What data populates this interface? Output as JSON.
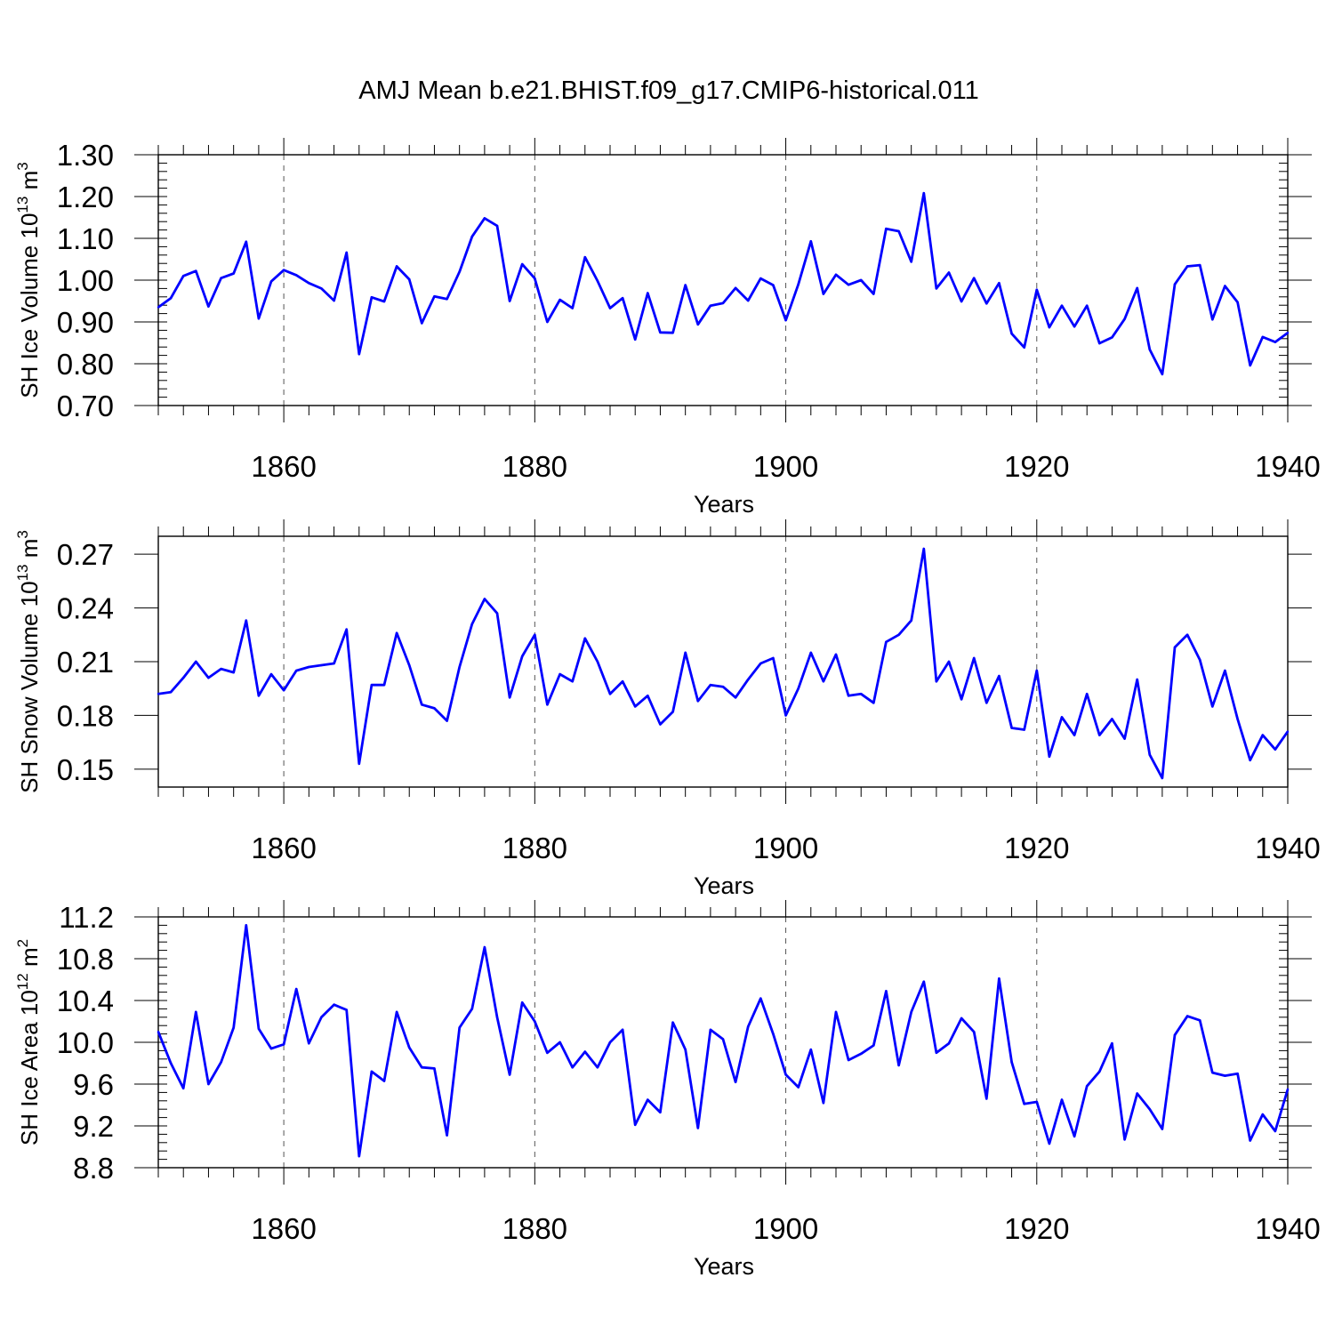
{
  "figure": {
    "title": "AMJ Mean b.e21.BHIST.f09_g17.CMIP6-historical.011"
  },
  "chart_data": [
    {
      "type": "line",
      "ylabel_main": "SH Ice Volume 10",
      "ylabel_exp": "13",
      "ylabel_unit": " m",
      "ylabel_unit_exp": "3",
      "xlabel": "Years",
      "xlim": [
        1850,
        1940
      ],
      "ylim": [
        0.7,
        1.3
      ],
      "yticks": [
        0.7,
        0.8,
        0.9,
        1.0,
        1.1,
        1.2,
        1.3
      ],
      "ytick_labels": [
        "0.70",
        "0.80",
        "0.90",
        "1.00",
        "1.10",
        "1.20",
        "1.30"
      ],
      "yminor_step": 0.02,
      "xticks": [
        1860,
        1880,
        1900,
        1920,
        1940
      ],
      "xtick_labels": [
        "1860",
        "1880",
        "1900",
        "1920",
        "1940"
      ],
      "grid_x": true,
      "line_color": "#0000ff",
      "x_start": 1850,
      "values": [
        0.935,
        0.957,
        1.01,
        1.022,
        0.937,
        1.005,
        1.016,
        1.092,
        0.908,
        0.997,
        1.024,
        1.012,
        0.993,
        0.98,
        0.951,
        1.066,
        0.823,
        0.959,
        0.949,
        1.033,
        1.002,
        0.897,
        0.961,
        0.955,
        1.02,
        1.104,
        1.148,
        1.13,
        0.95,
        1.038,
        1.004,
        0.9,
        0.953,
        0.933,
        1.055,
        0.998,
        0.933,
        0.957,
        0.858,
        0.969,
        0.875,
        0.874,
        0.988,
        0.894,
        0.939,
        0.945,
        0.981,
        0.951,
        1.004,
        0.988,
        0.904,
        0.99,
        1.093,
        0.967,
        1.013,
        0.989,
        1.0,
        0.967,
        1.123,
        1.117,
        1.044,
        1.208,
        0.98,
        1.018,
        0.949,
        1.005,
        0.944,
        0.993,
        0.872,
        0.839,
        0.977,
        0.887,
        0.939,
        0.889,
        0.939,
        0.849,
        0.863,
        0.907,
        0.981,
        0.834,
        0.775,
        0.99,
        1.033,
        1.036,
        0.906,
        0.986,
        0.947,
        0.796,
        0.864,
        0.852,
        0.874
      ]
    },
    {
      "type": "line",
      "ylabel_main": "SH Snow Volume 10",
      "ylabel_exp": "13",
      "ylabel_unit": " m",
      "ylabel_unit_exp": "3",
      "xlabel": "Years",
      "xlim": [
        1850,
        1940
      ],
      "ylim": [
        0.14,
        0.28
      ],
      "yticks": [
        0.15,
        0.18,
        0.21,
        0.24,
        0.27
      ],
      "ytick_labels": [
        "0.15",
        "0.18",
        "0.21",
        "0.24",
        "0.27"
      ],
      "yminor_step": 0.0,
      "xticks": [
        1860,
        1880,
        1900,
        1920,
        1940
      ],
      "xtick_labels": [
        "1860",
        "1880",
        "1900",
        "1920",
        "1940"
      ],
      "grid_x": true,
      "line_color": "#0000ff",
      "x_start": 1850,
      "values": [
        0.192,
        0.193,
        0.201,
        0.21,
        0.201,
        0.206,
        0.204,
        0.233,
        0.191,
        0.203,
        0.194,
        0.205,
        0.207,
        0.208,
        0.209,
        0.228,
        0.153,
        0.197,
        0.197,
        0.226,
        0.208,
        0.186,
        0.184,
        0.177,
        0.207,
        0.231,
        0.245,
        0.237,
        0.19,
        0.213,
        0.225,
        0.186,
        0.203,
        0.199,
        0.223,
        0.21,
        0.192,
        0.199,
        0.185,
        0.191,
        0.175,
        0.182,
        0.215,
        0.188,
        0.197,
        0.196,
        0.19,
        0.2,
        0.209,
        0.212,
        0.18,
        0.195,
        0.215,
        0.199,
        0.214,
        0.191,
        0.192,
        0.187,
        0.221,
        0.225,
        0.233,
        0.273,
        0.199,
        0.21,
        0.189,
        0.212,
        0.187,
        0.202,
        0.173,
        0.172,
        0.205,
        0.157,
        0.179,
        0.169,
        0.192,
        0.169,
        0.178,
        0.167,
        0.2,
        0.158,
        0.145,
        0.218,
        0.225,
        0.211,
        0.185,
        0.205,
        0.178,
        0.155,
        0.169,
        0.161,
        0.171
      ]
    },
    {
      "type": "line",
      "ylabel_main": "SH Ice Area 10",
      "ylabel_exp": "12",
      "ylabel_unit": " m",
      "ylabel_unit_exp": "2",
      "xlabel": "Years",
      "xlim": [
        1850,
        1940
      ],
      "ylim": [
        8.8,
        11.2
      ],
      "yticks": [
        8.8,
        9.2,
        9.6,
        10.0,
        10.4,
        10.8,
        11.2
      ],
      "ytick_labels": [
        "8.8",
        "9.2",
        "9.6",
        "10.0",
        "10.4",
        "10.8",
        "11.2"
      ],
      "yminor_step": 0.08,
      "xticks": [
        1860,
        1880,
        1900,
        1920,
        1940
      ],
      "xtick_labels": [
        "1860",
        "1880",
        "1900",
        "1920",
        "1940"
      ],
      "grid_x": true,
      "line_color": "#0000ff",
      "x_start": 1850,
      "values": [
        10.1,
        9.8,
        9.56,
        10.29,
        9.6,
        9.81,
        10.14,
        11.12,
        10.13,
        9.94,
        9.98,
        10.51,
        9.99,
        10.24,
        10.36,
        10.31,
        8.91,
        9.72,
        9.63,
        10.29,
        9.95,
        9.76,
        9.75,
        9.11,
        10.14,
        10.32,
        10.91,
        10.24,
        9.69,
        10.38,
        10.2,
        9.9,
        10.0,
        9.76,
        9.91,
        9.76,
        10.0,
        10.12,
        9.21,
        9.45,
        9.33,
        10.19,
        9.93,
        9.18,
        10.12,
        10.03,
        9.62,
        10.15,
        10.42,
        10.08,
        9.69,
        9.57,
        9.93,
        9.42,
        10.29,
        9.83,
        9.89,
        9.97,
        10.49,
        9.78,
        10.29,
        10.58,
        9.9,
        9.99,
        10.23,
        10.1,
        9.46,
        10.61,
        9.81,
        9.41,
        9.43,
        9.03,
        9.45,
        9.1,
        9.58,
        9.72,
        9.99,
        9.07,
        9.51,
        9.36,
        9.17,
        10.07,
        10.25,
        10.21,
        9.71,
        9.68,
        9.7,
        9.06,
        9.31,
        9.15,
        9.55
      ]
    }
  ]
}
